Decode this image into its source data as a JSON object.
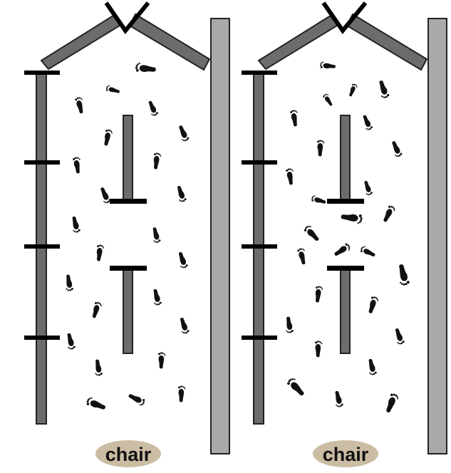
{
  "colors": {
    "wall_fill": "#6c6c6c",
    "wall_stroke": "#222222",
    "right_wall_fill": "#a9a9a9",
    "bar_color": "#000000",
    "chair_fill": "#cabda3",
    "footprint_color": "#111111"
  },
  "panels": [
    {
      "label": "chair",
      "pattern": "orderly"
    },
    {
      "label": "chair",
      "pattern": "congested"
    }
  ],
  "icons": {
    "footprint": "footprint-icon",
    "chair": "chair-oval"
  }
}
